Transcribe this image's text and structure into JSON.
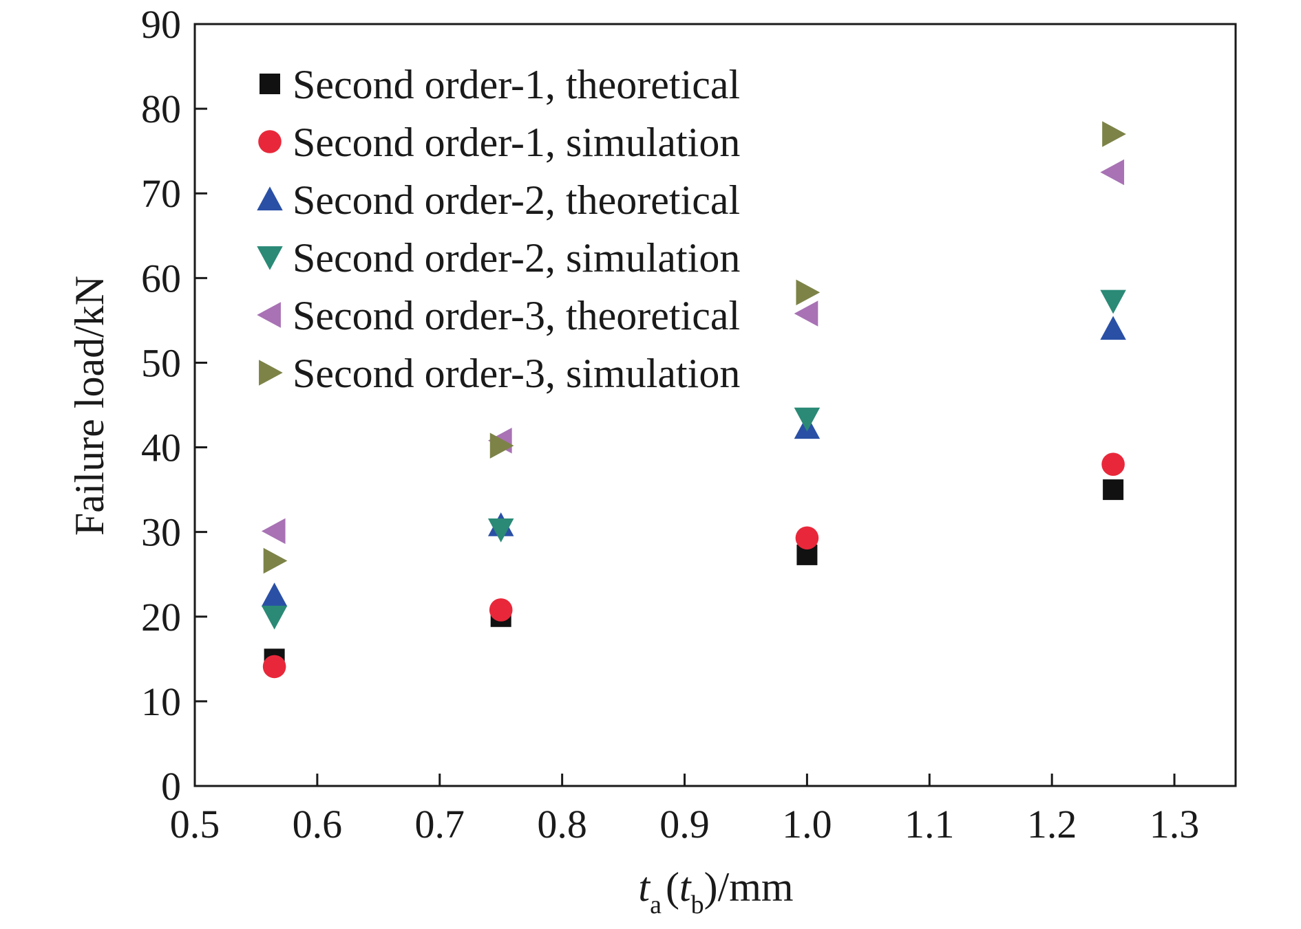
{
  "chart_data": {
    "type": "scatter",
    "title": "",
    "xlabel": {
      "main": "t",
      "sub_a": "a",
      "open": "(",
      "main_b": "t",
      "sub_b": "b",
      "close": ")",
      "unit": "/mm"
    },
    "ylabel": "Failure load/kN",
    "xlim": [
      0.5,
      1.35
    ],
    "ylim": [
      0,
      90
    ],
    "x_ticks": [
      "0.5",
      "0.6",
      "0.7",
      "0.8",
      "0.9",
      "1.0",
      "1.1",
      "1.2",
      "1.3"
    ],
    "x_tick_values": [
      0.5,
      0.6,
      0.7,
      0.8,
      0.9,
      1.0,
      1.1,
      1.2,
      1.3
    ],
    "y_ticks": [
      "0",
      "10",
      "20",
      "30",
      "40",
      "50",
      "60",
      "70",
      "80",
      "90"
    ],
    "y_tick_values": [
      0,
      10,
      20,
      30,
      40,
      50,
      60,
      70,
      80,
      90
    ],
    "grid": false,
    "legend_position": "top-left",
    "series": [
      {
        "name": "Second order-1, theoretical",
        "marker": "square",
        "color": "#111111",
        "points": [
          [
            0.565,
            15.0
          ],
          [
            0.75,
            20.0
          ],
          [
            1.0,
            27.3
          ],
          [
            1.25,
            35.0
          ]
        ]
      },
      {
        "name": "Second order-1, simulation",
        "marker": "circle",
        "color": "#e8283a",
        "points": [
          [
            0.565,
            14.1
          ],
          [
            0.75,
            20.8
          ],
          [
            1.0,
            29.3
          ],
          [
            1.25,
            38.0
          ]
        ]
      },
      {
        "name": "Second order-2, theoretical",
        "marker": "triangle-up",
        "color": "#2a50a6",
        "points": [
          [
            0.565,
            22.5
          ],
          [
            0.75,
            30.8
          ],
          [
            1.0,
            42.3
          ],
          [
            1.25,
            54.0
          ]
        ]
      },
      {
        "name": "Second order-2, simulation",
        "marker": "triangle-down",
        "color": "#2a8a76",
        "points": [
          [
            0.565,
            20.0
          ],
          [
            0.75,
            30.3
          ],
          [
            1.0,
            43.4
          ],
          [
            1.25,
            57.3
          ]
        ]
      },
      {
        "name": "Second order-3, theoretical",
        "marker": "triangle-left",
        "color": "#a872b4",
        "points": [
          [
            0.565,
            30.1
          ],
          [
            0.75,
            40.8
          ],
          [
            1.0,
            55.8
          ],
          [
            1.25,
            72.5
          ]
        ]
      },
      {
        "name": "Second order-3, simulation",
        "marker": "triangle-right",
        "color": "#7d8347",
        "points": [
          [
            0.565,
            26.6
          ],
          [
            0.75,
            40.2
          ],
          [
            1.0,
            58.3
          ],
          [
            1.25,
            77.0
          ]
        ]
      }
    ]
  }
}
